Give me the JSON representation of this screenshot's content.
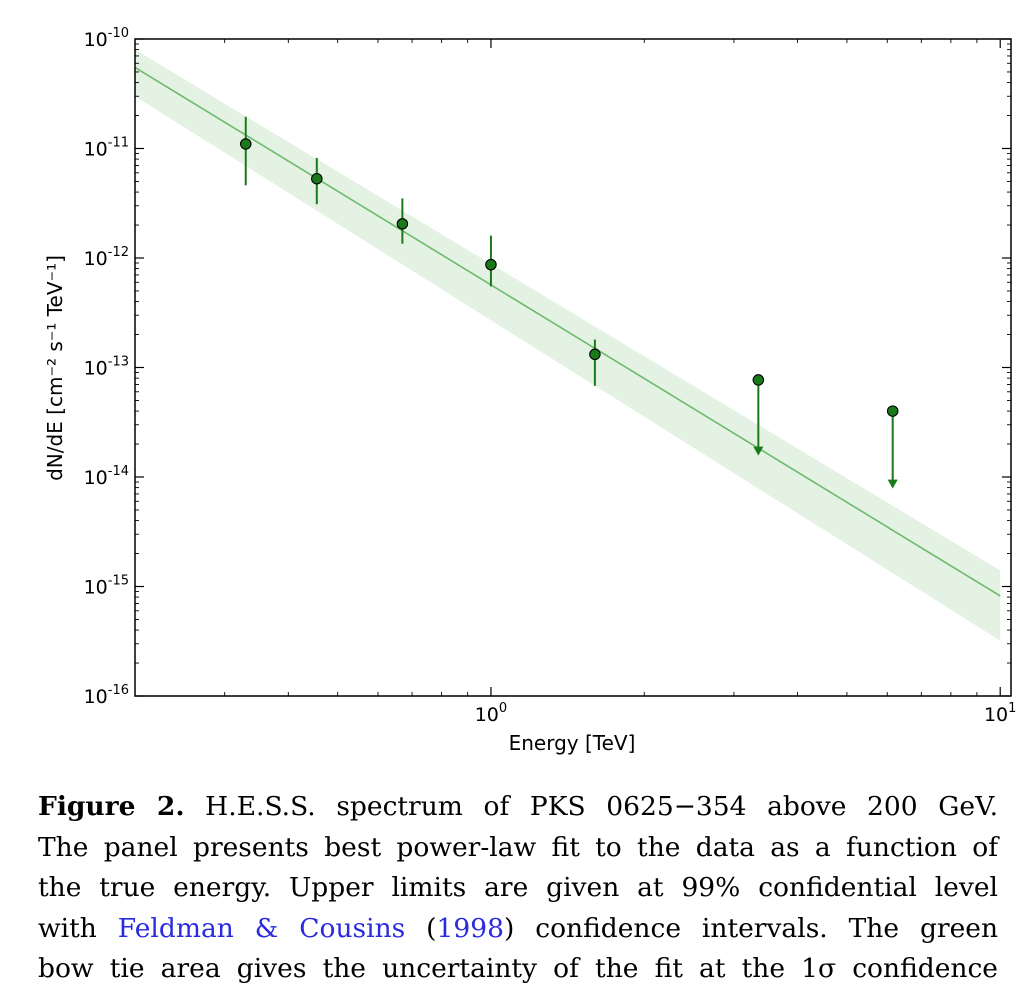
{
  "chart_data": {
    "type": "scatter",
    "xlabel": "Energy [TeV]",
    "ylabel": "dN/dE [cm⁻² s⁻¹ TeV⁻¹]",
    "x_scale": "log",
    "y_scale": "log",
    "xlim": [
      0.2,
      10.5
    ],
    "ylim": [
      1e-16,
      1e-10
    ],
    "x_ticks": [
      {
        "value": 1,
        "base": "10",
        "exp": "0"
      },
      {
        "value": 10,
        "base": "10",
        "exp": "1"
      }
    ],
    "y_ticks": [
      {
        "value": 1e-10,
        "base": "10",
        "exp": "-10"
      },
      {
        "value": 1e-11,
        "base": "10",
        "exp": "-11"
      },
      {
        "value": 1e-12,
        "base": "10",
        "exp": "-12"
      },
      {
        "value": 1e-13,
        "base": "10",
        "exp": "-13"
      },
      {
        "value": 1e-14,
        "base": "10",
        "exp": "-14"
      },
      {
        "value": 1e-15,
        "base": "10",
        "exp": "-15"
      },
      {
        "value": 1e-16,
        "base": "10",
        "exp": "-16"
      }
    ],
    "points": [
      {
        "x": 0.33,
        "y": 1.1e-11,
        "y_low": 4.6e-12,
        "y_high": 1.95e-11
      },
      {
        "x": 0.455,
        "y": 5.3e-12,
        "y_low": 3.1e-12,
        "y_high": 8.2e-12
      },
      {
        "x": 0.67,
        "y": 2.05e-12,
        "y_low": 1.35e-12,
        "y_high": 3.5e-12
      },
      {
        "x": 1.0,
        "y": 8.7e-13,
        "y_low": 5.5e-13,
        "y_high": 1.6e-12
      },
      {
        "x": 1.6,
        "y": 1.32e-13,
        "y_low": 6.8e-14,
        "y_high": 1.8e-13
      }
    ],
    "upper_limits": [
      {
        "x": 3.35,
        "y": 7.7e-14,
        "arrow_to": 1.6e-14
      },
      {
        "x": 6.15,
        "y": 4e-14,
        "arrow_to": 8e-15
      }
    ],
    "fit": {
      "model": "power-law",
      "x": [
        0.2,
        10
      ],
      "y": [
        5.5e-11,
        8.2e-16
      ],
      "band_upper": [
        8e-11,
        1.4e-15
      ],
      "band_lower": [
        3e-11,
        3.2e-16
      ]
    },
    "colors": {
      "points": "#1a7a1a",
      "fit_line": "#6cba6c",
      "band": "#e4f2e4"
    }
  },
  "caption": {
    "label": "Figure 2.",
    "lines": [
      " H.E.S.S. spectrum of PKS 0625−354 above 200 GeV.",
      "The panel presents best power-law fit to the data as a function of",
      "the true energy. Upper limits are given at 99% confidential level"
    ],
    "line4_pre": "with ",
    "line4_cite1": "Feldman & Cousins",
    "line4_open": " (",
    "line4_cite2": "1998",
    "line4_post": ") confidence intervals. The green",
    "line5": "bow tie area gives the uncertainty of the fit at the 1σ confidence"
  }
}
